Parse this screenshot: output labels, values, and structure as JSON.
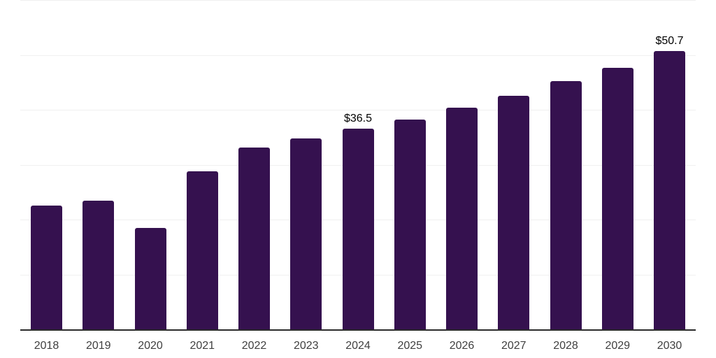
{
  "chart_data": {
    "type": "bar",
    "categories": [
      "2018",
      "2019",
      "2020",
      "2021",
      "2022",
      "2023",
      "2024",
      "2025",
      "2026",
      "2027",
      "2028",
      "2029",
      "2030"
    ],
    "values": [
      22.5,
      23.4,
      18.5,
      28.8,
      33.1,
      34.8,
      36.5,
      38.2,
      40.4,
      42.5,
      45.2,
      47.7,
      50.7
    ],
    "value_labels": [
      {
        "index": 6,
        "text": "$36.5"
      },
      {
        "index": 12,
        "text": "$50.7"
      }
    ],
    "title": "",
    "xlabel": "",
    "ylabel": "",
    "ylim": [
      0,
      60
    ],
    "gridline_interval": 10,
    "grid": true,
    "legend": "none",
    "currency_prefix": "$"
  },
  "colors": {
    "bar": "#35114F",
    "gridline": "#F0F0F0",
    "axis": "#2B2B2B",
    "year_label": "#3F3F3F",
    "value_label": "#000000",
    "background": "#FFFFFF"
  }
}
